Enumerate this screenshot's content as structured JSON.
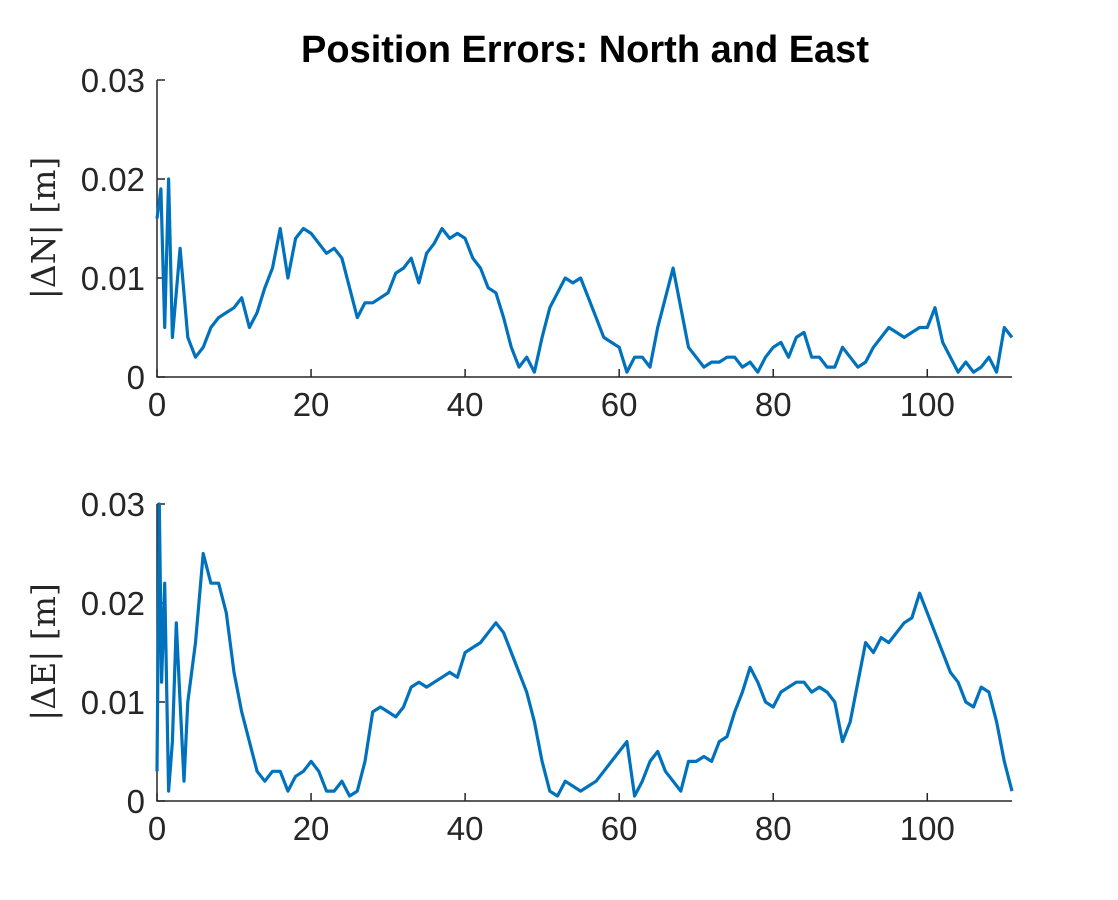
{
  "chart_data": [
    {
      "type": "line",
      "title": "Position Errors: North and East",
      "xlabel": "",
      "ylabel": "|ΔN| [m]",
      "xlim": [
        0,
        111
      ],
      "ylim": [
        0,
        0.03
      ],
      "xticks": [
        "0",
        "20",
        "40",
        "60",
        "80",
        "100"
      ],
      "yticks": [
        "0",
        "0.01",
        "0.02",
        "0.03"
      ],
      "grid": false,
      "color": "#0072BD",
      "series": [
        {
          "x": [
            0,
            0.5,
            1,
            1.5,
            2,
            3,
            4,
            5,
            6,
            7,
            8,
            9,
            10,
            11,
            12,
            13,
            14,
            15,
            16,
            17,
            18,
            19,
            20,
            21,
            22,
            23,
            24,
            25,
            26,
            27,
            28,
            29,
            30,
            31,
            32,
            33,
            34,
            35,
            36,
            37,
            38,
            39,
            40,
            41,
            42,
            43,
            44,
            45,
            46,
            47,
            48,
            49,
            50,
            51,
            52,
            53,
            54,
            55,
            56,
            57,
            58,
            59,
            60,
            61,
            62,
            63,
            64,
            65,
            66,
            67,
            68,
            69,
            70,
            71,
            72,
            73,
            74,
            75,
            76,
            77,
            78,
            79,
            80,
            81,
            82,
            83,
            84,
            85,
            86,
            87,
            88,
            89,
            90,
            91,
            92,
            93,
            94,
            95,
            96,
            97,
            98,
            99,
            100,
            101,
            102,
            103,
            104,
            105,
            106,
            107,
            108,
            109,
            110,
            111
          ],
          "y": [
            0.016,
            0.019,
            0.005,
            0.02,
            0.004,
            0.013,
            0.004,
            0.002,
            0.003,
            0.005,
            0.006,
            0.0065,
            0.007,
            0.008,
            0.005,
            0.0065,
            0.009,
            0.011,
            0.015,
            0.01,
            0.014,
            0.015,
            0.0145,
            0.0135,
            0.0125,
            0.013,
            0.012,
            0.009,
            0.006,
            0.0075,
            0.0075,
            0.008,
            0.0085,
            0.0105,
            0.011,
            0.012,
            0.0095,
            0.0125,
            0.0135,
            0.015,
            0.014,
            0.0145,
            0.014,
            0.012,
            0.011,
            0.009,
            0.0085,
            0.006,
            0.003,
            0.001,
            0.002,
            0.0005,
            0.004,
            0.007,
            0.0085,
            0.01,
            0.0095,
            0.01,
            0.008,
            0.006,
            0.004,
            0.0035,
            0.003,
            0.0005,
            0.002,
            0.002,
            0.001,
            0.005,
            0.008,
            0.011,
            0.007,
            0.003,
            0.002,
            0.001,
            0.0015,
            0.0015,
            0.002,
            0.002,
            0.001,
            0.0015,
            0.0005,
            0.002,
            0.003,
            0.0035,
            0.002,
            0.004,
            0.0045,
            0.002,
            0.002,
            0.001,
            0.001,
            0.003,
            0.002,
            0.001,
            0.0015,
            0.003,
            0.004,
            0.005,
            0.0045,
            0.004,
            0.0045,
            0.005,
            0.005,
            0.007,
            0.0035,
            0.002,
            0.0005,
            0.0015,
            0.0005,
            0.001,
            0.002,
            0.0005,
            0.005,
            0.004
          ]
        }
      ]
    },
    {
      "type": "line",
      "title": "",
      "xlabel": "",
      "ylabel": "|ΔE| [m]",
      "xlim": [
        0,
        111
      ],
      "ylim": [
        0,
        0.03
      ],
      "xticks": [
        "0",
        "20",
        "40",
        "60",
        "80",
        "100"
      ],
      "yticks": [
        "0",
        "0.01",
        "0.02",
        "0.03"
      ],
      "grid": false,
      "color": "#0072BD",
      "series": [
        {
          "x": [
            0,
            0.3,
            0.6,
            1,
            1.5,
            2,
            2.5,
            3,
            3.5,
            4,
            5,
            6,
            7,
            8,
            9,
            10,
            11,
            12,
            13,
            14,
            15,
            16,
            17,
            18,
            19,
            20,
            21,
            22,
            23,
            24,
            25,
            26,
            27,
            28,
            29,
            30,
            31,
            32,
            33,
            34,
            35,
            36,
            37,
            38,
            39,
            40,
            41,
            42,
            43,
            44,
            45,
            46,
            47,
            48,
            49,
            50,
            51,
            52,
            53,
            54,
            55,
            56,
            57,
            58,
            59,
            60,
            61,
            62,
            63,
            64,
            65,
            66,
            67,
            68,
            69,
            70,
            71,
            72,
            73,
            74,
            75,
            76,
            77,
            78,
            79,
            80,
            81,
            82,
            83,
            84,
            85,
            86,
            87,
            88,
            89,
            90,
            91,
            92,
            93,
            94,
            95,
            96,
            97,
            98,
            99,
            100,
            101,
            102,
            103,
            104,
            105,
            106,
            107,
            108,
            109,
            110,
            111
          ],
          "y": [
            0.003,
            0.03,
            0.012,
            0.022,
            0.001,
            0.006,
            0.018,
            0.01,
            0.002,
            0.01,
            0.016,
            0.025,
            0.022,
            0.022,
            0.019,
            0.013,
            0.009,
            0.006,
            0.003,
            0.002,
            0.003,
            0.003,
            0.001,
            0.0025,
            0.003,
            0.004,
            0.003,
            0.001,
            0.001,
            0.002,
            0.0005,
            0.001,
            0.004,
            0.009,
            0.0095,
            0.009,
            0.0085,
            0.0095,
            0.0115,
            0.012,
            0.0115,
            0.012,
            0.0125,
            0.013,
            0.0125,
            0.015,
            0.0155,
            0.016,
            0.017,
            0.018,
            0.017,
            0.015,
            0.013,
            0.011,
            0.008,
            0.004,
            0.001,
            0.0005,
            0.002,
            0.0015,
            0.001,
            0.0015,
            0.002,
            0.003,
            0.004,
            0.005,
            0.006,
            0.0005,
            0.002,
            0.004,
            0.005,
            0.003,
            0.002,
            0.001,
            0.004,
            0.004,
            0.0045,
            0.004,
            0.006,
            0.0065,
            0.009,
            0.011,
            0.0135,
            0.012,
            0.01,
            0.0095,
            0.011,
            0.0115,
            0.012,
            0.012,
            0.011,
            0.0115,
            0.011,
            0.01,
            0.006,
            0.008,
            0.012,
            0.016,
            0.015,
            0.0165,
            0.016,
            0.017,
            0.018,
            0.0185,
            0.021,
            0.019,
            0.017,
            0.015,
            0.013,
            0.012,
            0.01,
            0.0095,
            0.0115,
            0.011,
            0.008,
            0.004,
            0.001
          ]
        }
      ]
    }
  ]
}
